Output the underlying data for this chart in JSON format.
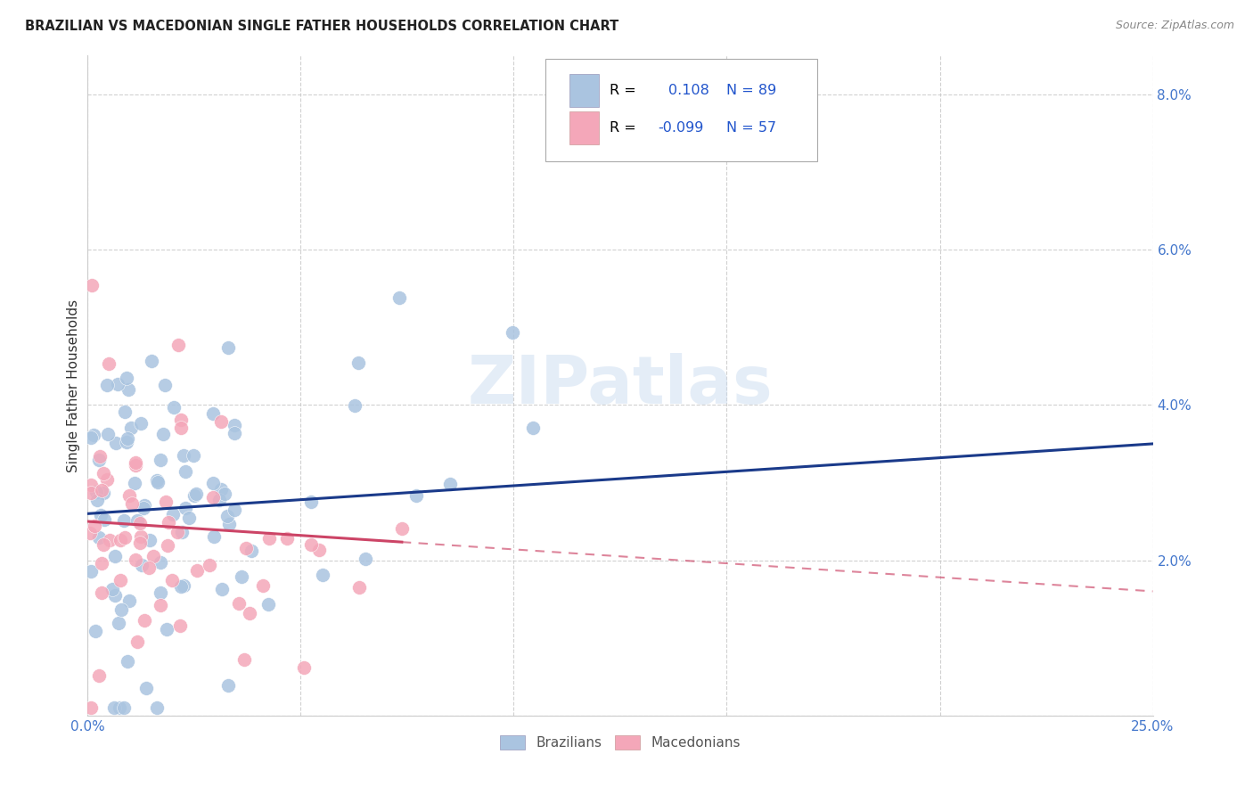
{
  "title": "BRAZILIAN VS MACEDONIAN SINGLE FATHER HOUSEHOLDS CORRELATION CHART",
  "source": "Source: ZipAtlas.com",
  "ylabel": "Single Father Households",
  "xlim": [
    0.0,
    0.25
  ],
  "ylim": [
    0.0,
    0.085
  ],
  "xtick_vals": [
    0.0,
    0.05,
    0.1,
    0.15,
    0.2,
    0.25
  ],
  "xtick_labels": [
    "0.0%",
    "",
    "",
    "",
    "",
    "25.0%"
  ],
  "ytick_vals": [
    0.0,
    0.02,
    0.04,
    0.06,
    0.08
  ],
  "ytick_labels": [
    "",
    "2.0%",
    "4.0%",
    "6.0%",
    "8.0%"
  ],
  "brazilian_R": 0.108,
  "brazilian_N": 89,
  "macedonian_R": -0.099,
  "macedonian_N": 57,
  "blue_color": "#aac4e0",
  "pink_color": "#f4a7b9",
  "blue_line_color": "#1a3a8a",
  "pink_line_color": "#cc4466",
  "watermark": "ZIPatlas",
  "background_color": "#ffffff",
  "grid_color": "#cccccc",
  "tick_color": "#4477cc",
  "label_color": "#333333",
  "title_color": "#222222",
  "source_color": "#888888",
  "legend_r_color": "#000000",
  "legend_val_color": "#2255cc"
}
